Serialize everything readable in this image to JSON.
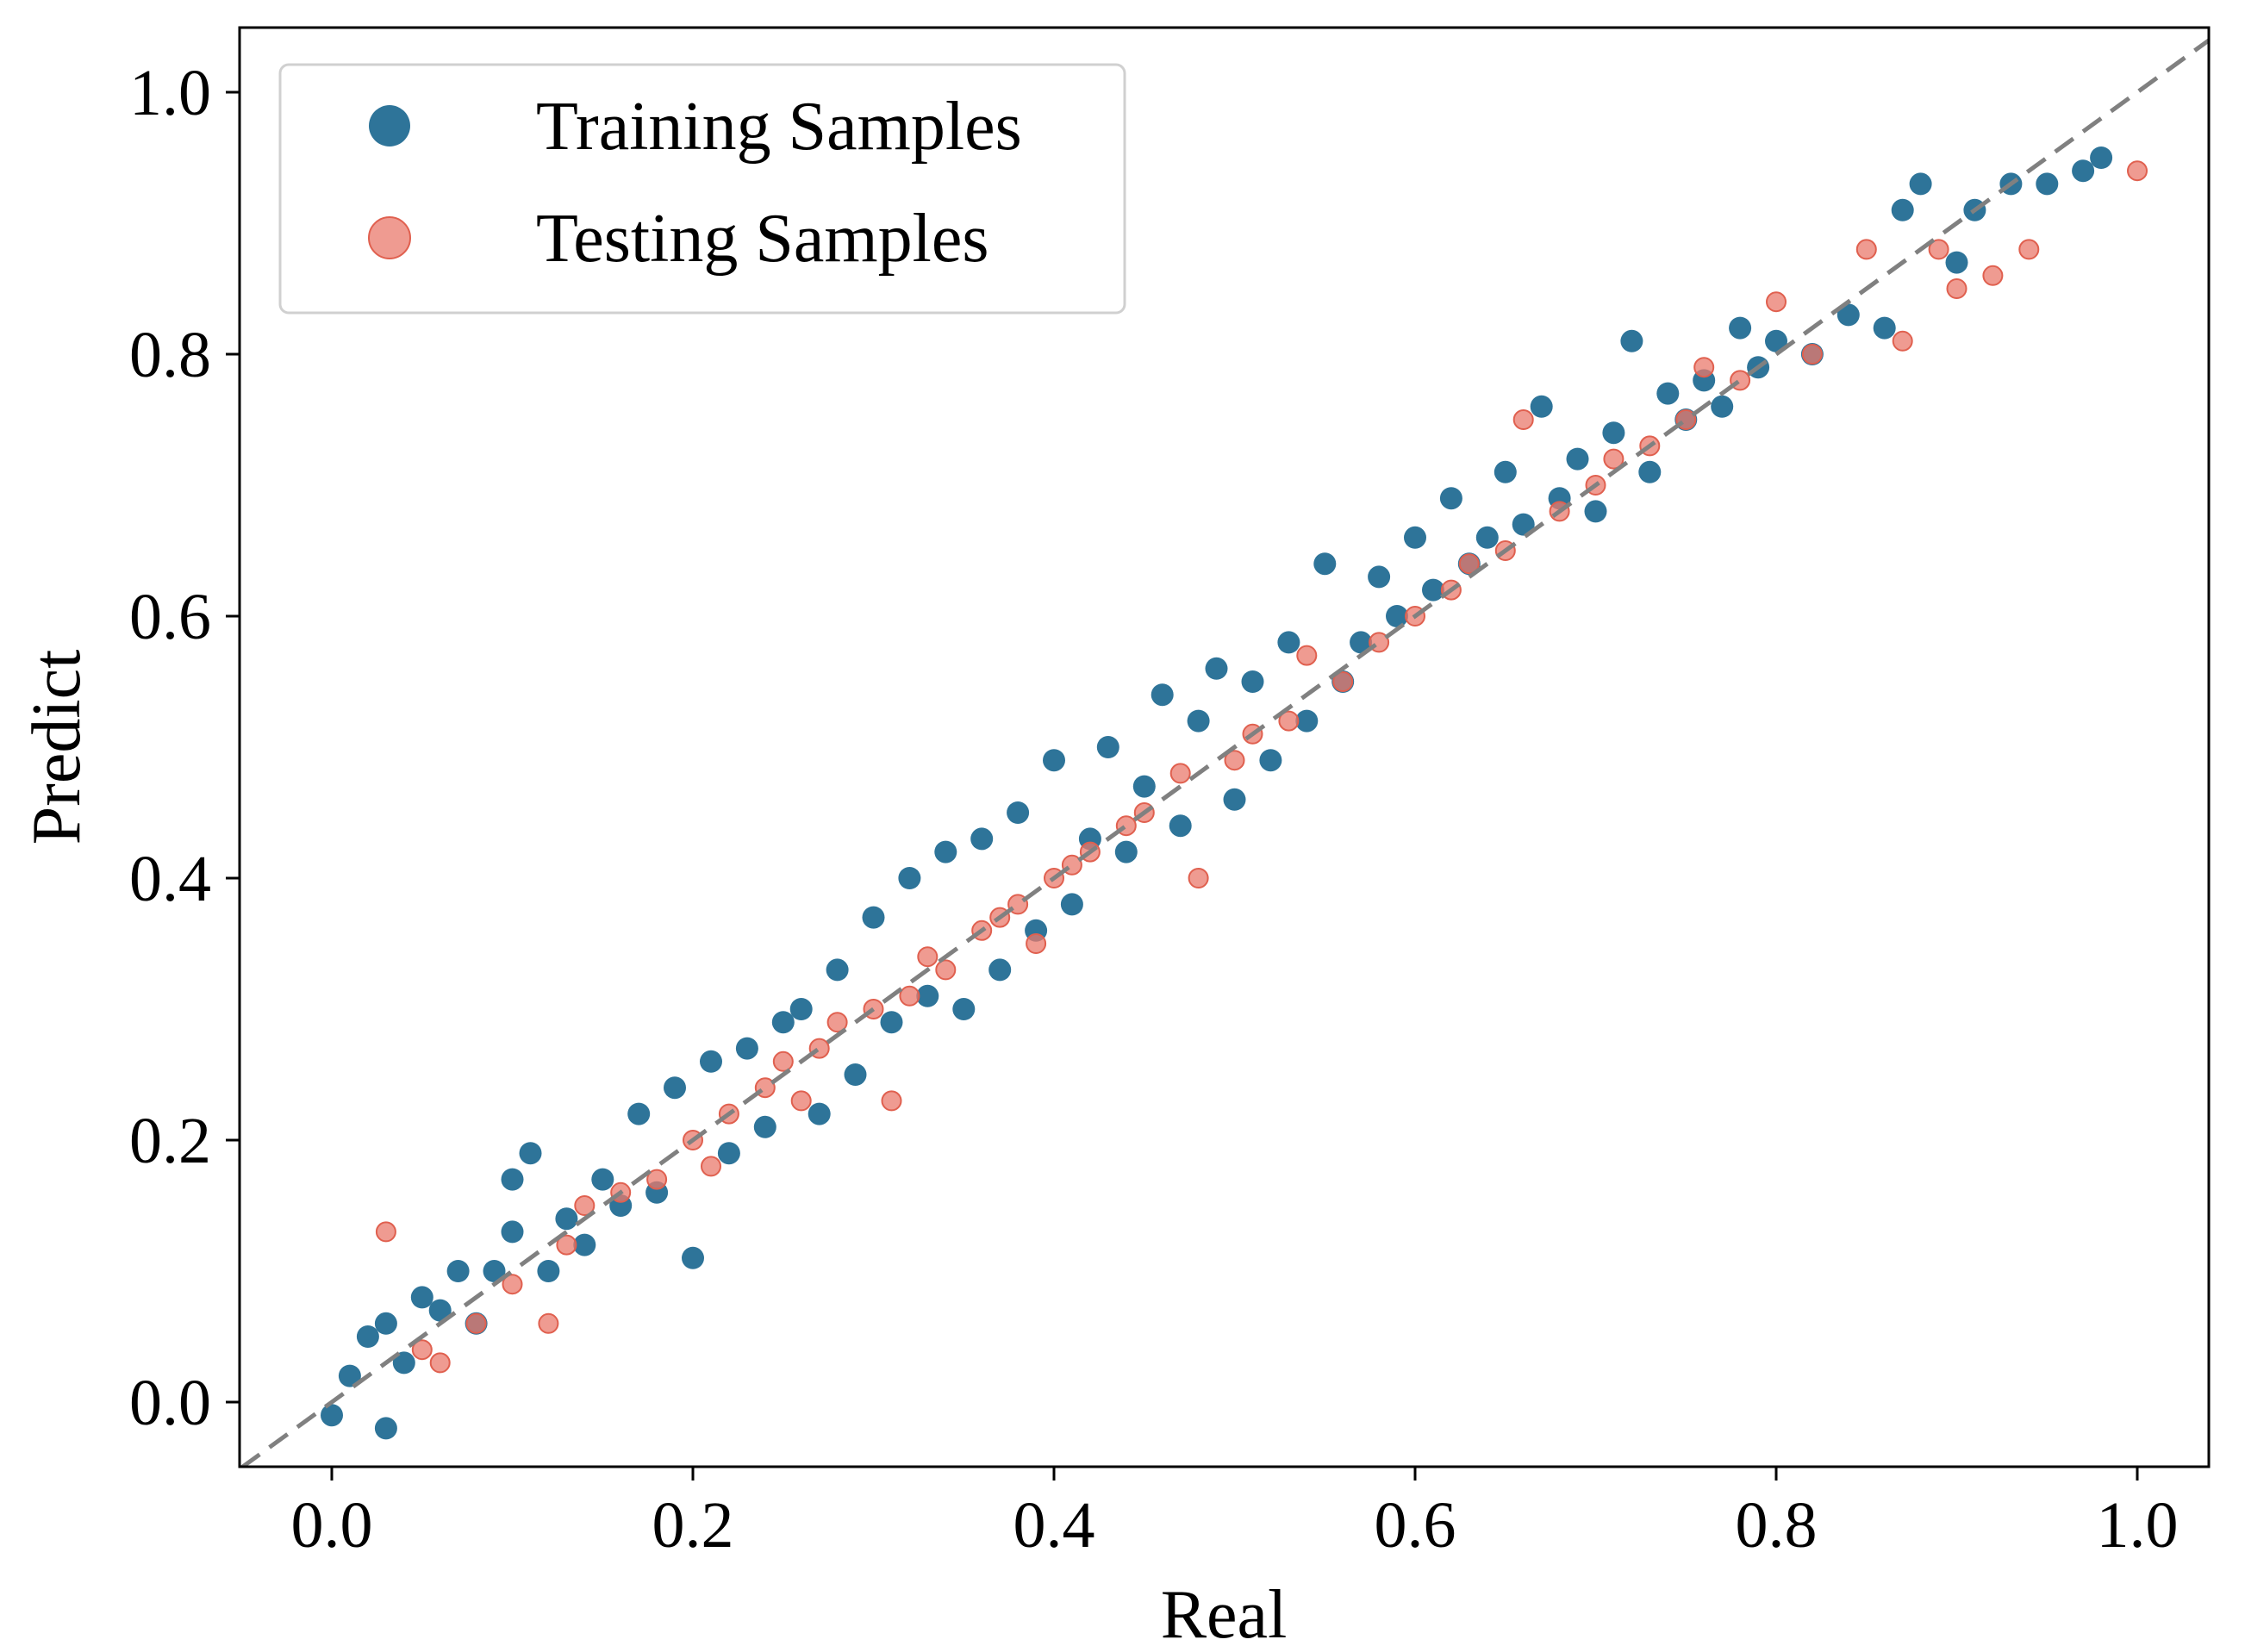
{
  "chart_data": {
    "type": "scatter",
    "title": "",
    "xlabel": "Real",
    "ylabel": "Predict",
    "xlim": [
      -0.05,
      1.05
    ],
    "ylim": [
      -0.05,
      1.05
    ],
    "grid": false,
    "legend_position": "top-left",
    "x_ticks": [
      0.0,
      0.2,
      0.4,
      0.6,
      0.8,
      1.0
    ],
    "y_ticks": [
      0.0,
      0.2,
      0.4,
      0.6,
      0.8,
      1.0
    ],
    "x_tick_labels": [
      "0.0",
      "0.2",
      "0.4",
      "0.6",
      "0.8",
      "1.0"
    ],
    "y_tick_labels": [
      "0.0",
      "0.2",
      "0.4",
      "0.6",
      "0.8",
      "1.0"
    ],
    "reference_line": {
      "style": "dashed",
      "color": "#808080",
      "from": [
        -0.05,
        -0.05
      ],
      "to": [
        1.05,
        1.05
      ]
    },
    "series": [
      {
        "name": "Training Samples",
        "color": "#2e7499",
        "points": [
          [
            0.0,
            -0.01
          ],
          [
            0.01,
            0.02
          ],
          [
            0.02,
            0.05
          ],
          [
            0.03,
            -0.02
          ],
          [
            0.03,
            0.06
          ],
          [
            0.04,
            0.03
          ],
          [
            0.05,
            0.08
          ],
          [
            0.06,
            0.07
          ],
          [
            0.07,
            0.1
          ],
          [
            0.08,
            0.06
          ],
          [
            0.09,
            0.1
          ],
          [
            0.1,
            0.13
          ],
          [
            0.1,
            0.17
          ],
          [
            0.11,
            0.19
          ],
          [
            0.12,
            0.1
          ],
          [
            0.13,
            0.14
          ],
          [
            0.14,
            0.12
          ],
          [
            0.15,
            0.17
          ],
          [
            0.16,
            0.15
          ],
          [
            0.17,
            0.22
          ],
          [
            0.18,
            0.16
          ],
          [
            0.19,
            0.24
          ],
          [
            0.2,
            0.11
          ],
          [
            0.21,
            0.26
          ],
          [
            0.22,
            0.19
          ],
          [
            0.23,
            0.27
          ],
          [
            0.24,
            0.21
          ],
          [
            0.25,
            0.29
          ],
          [
            0.26,
            0.3
          ],
          [
            0.27,
            0.22
          ],
          [
            0.28,
            0.33
          ],
          [
            0.29,
            0.25
          ],
          [
            0.3,
            0.37
          ],
          [
            0.31,
            0.29
          ],
          [
            0.32,
            0.4
          ],
          [
            0.33,
            0.31
          ],
          [
            0.34,
            0.42
          ],
          [
            0.35,
            0.3
          ],
          [
            0.36,
            0.43
          ],
          [
            0.37,
            0.33
          ],
          [
            0.38,
            0.45
          ],
          [
            0.39,
            0.36
          ],
          [
            0.4,
            0.49
          ],
          [
            0.41,
            0.38
          ],
          [
            0.42,
            0.43
          ],
          [
            0.43,
            0.5
          ],
          [
            0.44,
            0.42
          ],
          [
            0.45,
            0.47
          ],
          [
            0.46,
            0.54
          ],
          [
            0.47,
            0.44
          ],
          [
            0.48,
            0.52
          ],
          [
            0.49,
            0.56
          ],
          [
            0.5,
            0.46
          ],
          [
            0.51,
            0.55
          ],
          [
            0.52,
            0.49
          ],
          [
            0.53,
            0.58
          ],
          [
            0.54,
            0.52
          ],
          [
            0.55,
            0.64
          ],
          [
            0.56,
            0.55
          ],
          [
            0.57,
            0.58
          ],
          [
            0.58,
            0.63
          ],
          [
            0.59,
            0.6
          ],
          [
            0.6,
            0.66
          ],
          [
            0.61,
            0.62
          ],
          [
            0.62,
            0.69
          ],
          [
            0.63,
            0.64
          ],
          [
            0.64,
            0.66
          ],
          [
            0.65,
            0.71
          ],
          [
            0.66,
            0.67
          ],
          [
            0.67,
            0.76
          ],
          [
            0.68,
            0.69
          ],
          [
            0.69,
            0.72
          ],
          [
            0.7,
            0.68
          ],
          [
            0.71,
            0.74
          ],
          [
            0.72,
            0.81
          ],
          [
            0.73,
            0.71
          ],
          [
            0.74,
            0.77
          ],
          [
            0.75,
            0.75
          ],
          [
            0.76,
            0.78
          ],
          [
            0.77,
            0.76
          ],
          [
            0.78,
            0.82
          ],
          [
            0.79,
            0.79
          ],
          [
            0.8,
            0.81
          ],
          [
            0.82,
            0.8
          ],
          [
            0.84,
            0.83
          ],
          [
            0.86,
            0.82
          ],
          [
            0.87,
            0.91
          ],
          [
            0.88,
            0.93
          ],
          [
            0.9,
            0.87
          ],
          [
            0.91,
            0.91
          ],
          [
            0.93,
            0.93
          ],
          [
            0.95,
            0.93
          ],
          [
            0.97,
            0.94
          ],
          [
            0.98,
            0.95
          ]
        ]
      },
      {
        "name": "Testing Samples",
        "color": "#ea7a6c",
        "points": [
          [
            0.03,
            0.13
          ],
          [
            0.05,
            0.04
          ],
          [
            0.06,
            0.03
          ],
          [
            0.08,
            0.06
          ],
          [
            0.1,
            0.09
          ],
          [
            0.12,
            0.06
          ],
          [
            0.13,
            0.12
          ],
          [
            0.14,
            0.15
          ],
          [
            0.16,
            0.16
          ],
          [
            0.18,
            0.17
          ],
          [
            0.2,
            0.2
          ],
          [
            0.21,
            0.18
          ],
          [
            0.22,
            0.22
          ],
          [
            0.24,
            0.24
          ],
          [
            0.25,
            0.26
          ],
          [
            0.26,
            0.23
          ],
          [
            0.27,
            0.27
          ],
          [
            0.28,
            0.29
          ],
          [
            0.3,
            0.3
          ],
          [
            0.31,
            0.23
          ],
          [
            0.32,
            0.31
          ],
          [
            0.33,
            0.34
          ],
          [
            0.34,
            0.33
          ],
          [
            0.36,
            0.36
          ],
          [
            0.37,
            0.37
          ],
          [
            0.38,
            0.38
          ],
          [
            0.39,
            0.35
          ],
          [
            0.4,
            0.4
          ],
          [
            0.41,
            0.41
          ],
          [
            0.42,
            0.42
          ],
          [
            0.44,
            0.44
          ],
          [
            0.45,
            0.45
          ],
          [
            0.47,
            0.48
          ],
          [
            0.48,
            0.4
          ],
          [
            0.5,
            0.49
          ],
          [
            0.51,
            0.51
          ],
          [
            0.53,
            0.52
          ],
          [
            0.54,
            0.57
          ],
          [
            0.56,
            0.55
          ],
          [
            0.58,
            0.58
          ],
          [
            0.6,
            0.6
          ],
          [
            0.62,
            0.62
          ],
          [
            0.63,
            0.64
          ],
          [
            0.65,
            0.65
          ],
          [
            0.66,
            0.75
          ],
          [
            0.68,
            0.68
          ],
          [
            0.7,
            0.7
          ],
          [
            0.71,
            0.72
          ],
          [
            0.73,
            0.73
          ],
          [
            0.75,
            0.75
          ],
          [
            0.76,
            0.79
          ],
          [
            0.78,
            0.78
          ],
          [
            0.8,
            0.84
          ],
          [
            0.82,
            0.8
          ],
          [
            0.85,
            0.88
          ],
          [
            0.87,
            0.81
          ],
          [
            0.89,
            0.88
          ],
          [
            0.9,
            0.85
          ],
          [
            0.92,
            0.86
          ],
          [
            0.94,
            0.88
          ],
          [
            1.0,
            0.94
          ]
        ]
      }
    ]
  }
}
